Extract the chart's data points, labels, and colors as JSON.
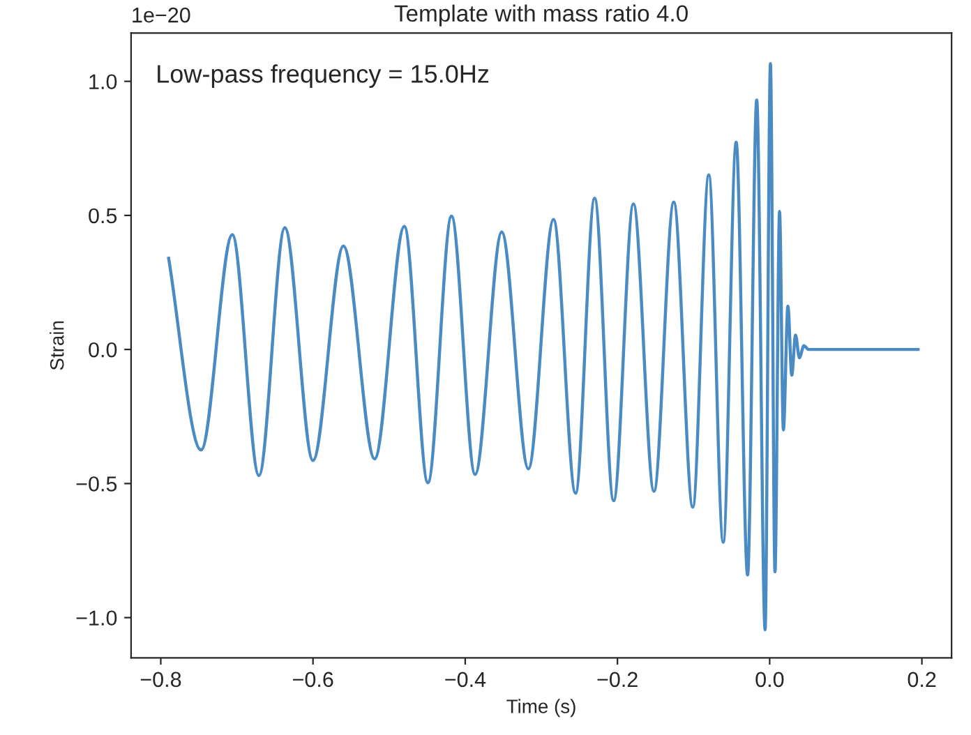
{
  "chart_data": {
    "type": "line",
    "title": "Template with mass ratio 4.0",
    "xlabel": "Time (s)",
    "ylabel": "Strain",
    "annotations": [
      "1e−20",
      "Low-pass frequency = 15.0Hz"
    ],
    "xlim": [
      -0.839,
      0.239
    ],
    "xticks": [
      {
        "value": -0.8,
        "label": "−0.8"
      },
      {
        "value": -0.6,
        "label": "−0.6"
      },
      {
        "value": -0.4,
        "label": "−0.4"
      },
      {
        "value": -0.2,
        "label": "−0.2"
      },
      {
        "value": 0,
        "label": "0.0"
      },
      {
        "value": 0.2,
        "label": "0.2"
      }
    ],
    "ylim": [
      -1.15,
      1.18
    ],
    "yticks": [
      {
        "value": -1,
        "label": "−1.0"
      },
      {
        "value": -0.5,
        "label": "−0.5"
      },
      {
        "value": 0,
        "label": "0.0"
      },
      {
        "value": 0.5,
        "label": "0.5"
      },
      {
        "value": 1,
        "label": "1.0"
      }
    ],
    "grid": false,
    "legend": false,
    "marker": "none",
    "line_style": "solid",
    "series": [
      {
        "color": "#4b8bc4",
        "x": [
          -0.79,
          -0.747,
          -0.706,
          -0.671,
          -0.637,
          -0.6,
          -0.56,
          -0.519,
          -0.48,
          -0.449,
          -0.418,
          -0.387,
          -0.352,
          -0.317,
          -0.284,
          -0.255,
          -0.23,
          -0.205,
          -0.179,
          -0.152,
          -0.126,
          -0.101,
          -0.08,
          -0.061,
          -0.044,
          -0.029,
          -0.017,
          -0.006,
          0.001,
          0.007,
          0.013,
          0.018,
          0.024,
          0.029,
          0.034,
          0.039,
          0.045,
          0.051,
          0.197
        ],
        "values": [
          0.346,
          -0.375,
          0.428,
          -0.47,
          0.454,
          -0.414,
          0.386,
          -0.408,
          0.459,
          -0.497,
          0.497,
          -0.466,
          0.438,
          -0.445,
          0.485,
          -0.536,
          0.564,
          -0.564,
          0.543,
          -0.529,
          0.55,
          -0.588,
          0.651,
          -0.719,
          0.773,
          -0.841,
          0.93,
          -1.045,
          1.066,
          -0.829,
          0.515,
          -0.3,
          0.162,
          -0.096,
          0.054,
          -0.031,
          0.014,
          0.0,
          0.0
        ]
      }
    ]
  }
}
